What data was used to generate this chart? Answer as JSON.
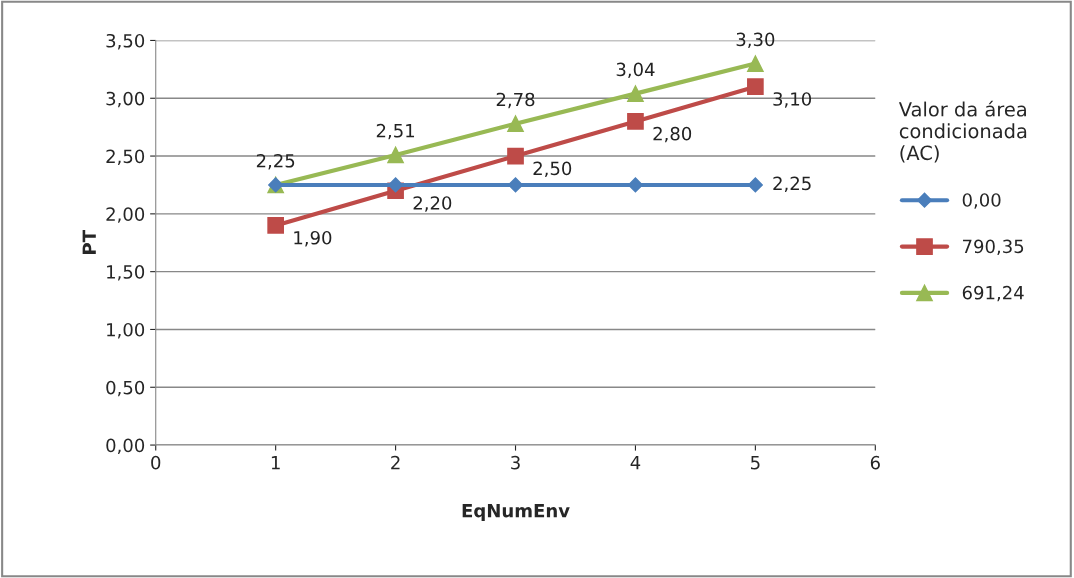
{
  "chart_data": {
    "type": "line",
    "xlabel": "EqNumEnv",
    "ylabel": "PT",
    "legend_title": "Valor da área\ncondicionada\n(AC)",
    "legend": "right",
    "grid": "y",
    "x": [
      1,
      2,
      3,
      4,
      5
    ],
    "xlim": [
      0,
      6
    ],
    "xticks": [
      0,
      1,
      2,
      3,
      4,
      5,
      6
    ],
    "ylim": [
      0,
      3.5
    ],
    "yticks": [
      {
        "value": 0,
        "label": "0,00"
      },
      {
        "value": 0.5,
        "label": "0,50"
      },
      {
        "value": 1,
        "label": "1,00"
      },
      {
        "value": 1.5,
        "label": "1,50"
      },
      {
        "value": 2,
        "label": "2,00"
      },
      {
        "value": 2.5,
        "label": "2,50"
      },
      {
        "value": 3,
        "label": "3,00"
      },
      {
        "value": 3.5,
        "label": "3,50"
      }
    ],
    "series": [
      {
        "name": "0,00",
        "color": "#4a7ebb",
        "marker": "diamond",
        "values": [
          2.25,
          2.25,
          2.25,
          2.25,
          2.25
        ],
        "value_labels": [
          null,
          null,
          null,
          null,
          "2,25"
        ]
      },
      {
        "name": "790,35",
        "color": "#be4b48",
        "marker": "square",
        "values": [
          1.9,
          2.2,
          2.5,
          2.8,
          3.1
        ],
        "value_labels": [
          "1,90",
          "2,20",
          "2,50",
          "2,80",
          "3,10"
        ]
      },
      {
        "name": "691,24",
        "color": "#98b954",
        "marker": "triangle",
        "values": [
          2.25,
          2.51,
          2.78,
          3.04,
          3.3
        ],
        "value_labels": [
          "2,25",
          "2,51",
          "2,78",
          "3,04",
          "3,30"
        ]
      }
    ]
  }
}
